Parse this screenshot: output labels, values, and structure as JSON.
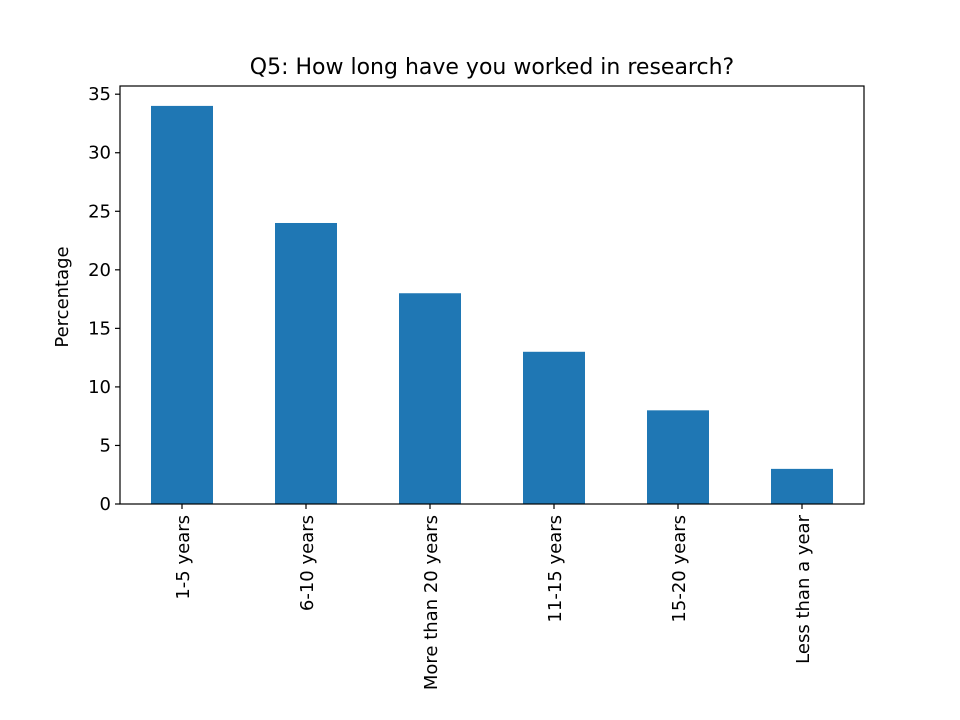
{
  "chart_data": {
    "type": "bar",
    "title": "Q5: How long have you worked in research?",
    "xlabel": "",
    "ylabel": "Percentage",
    "categories": [
      "1-5 years",
      "6-10 years",
      "More than 20 years",
      "11-15 years",
      "15-20 years",
      "Less than a year"
    ],
    "values": [
      34,
      24,
      18,
      13,
      8,
      3
    ],
    "ylim": [
      0,
      35.7
    ],
    "yticks": [
      0,
      5,
      10,
      15,
      20,
      25,
      30,
      35
    ],
    "bar_color": "#1f77b4",
    "grid": false,
    "legend": "none"
  }
}
